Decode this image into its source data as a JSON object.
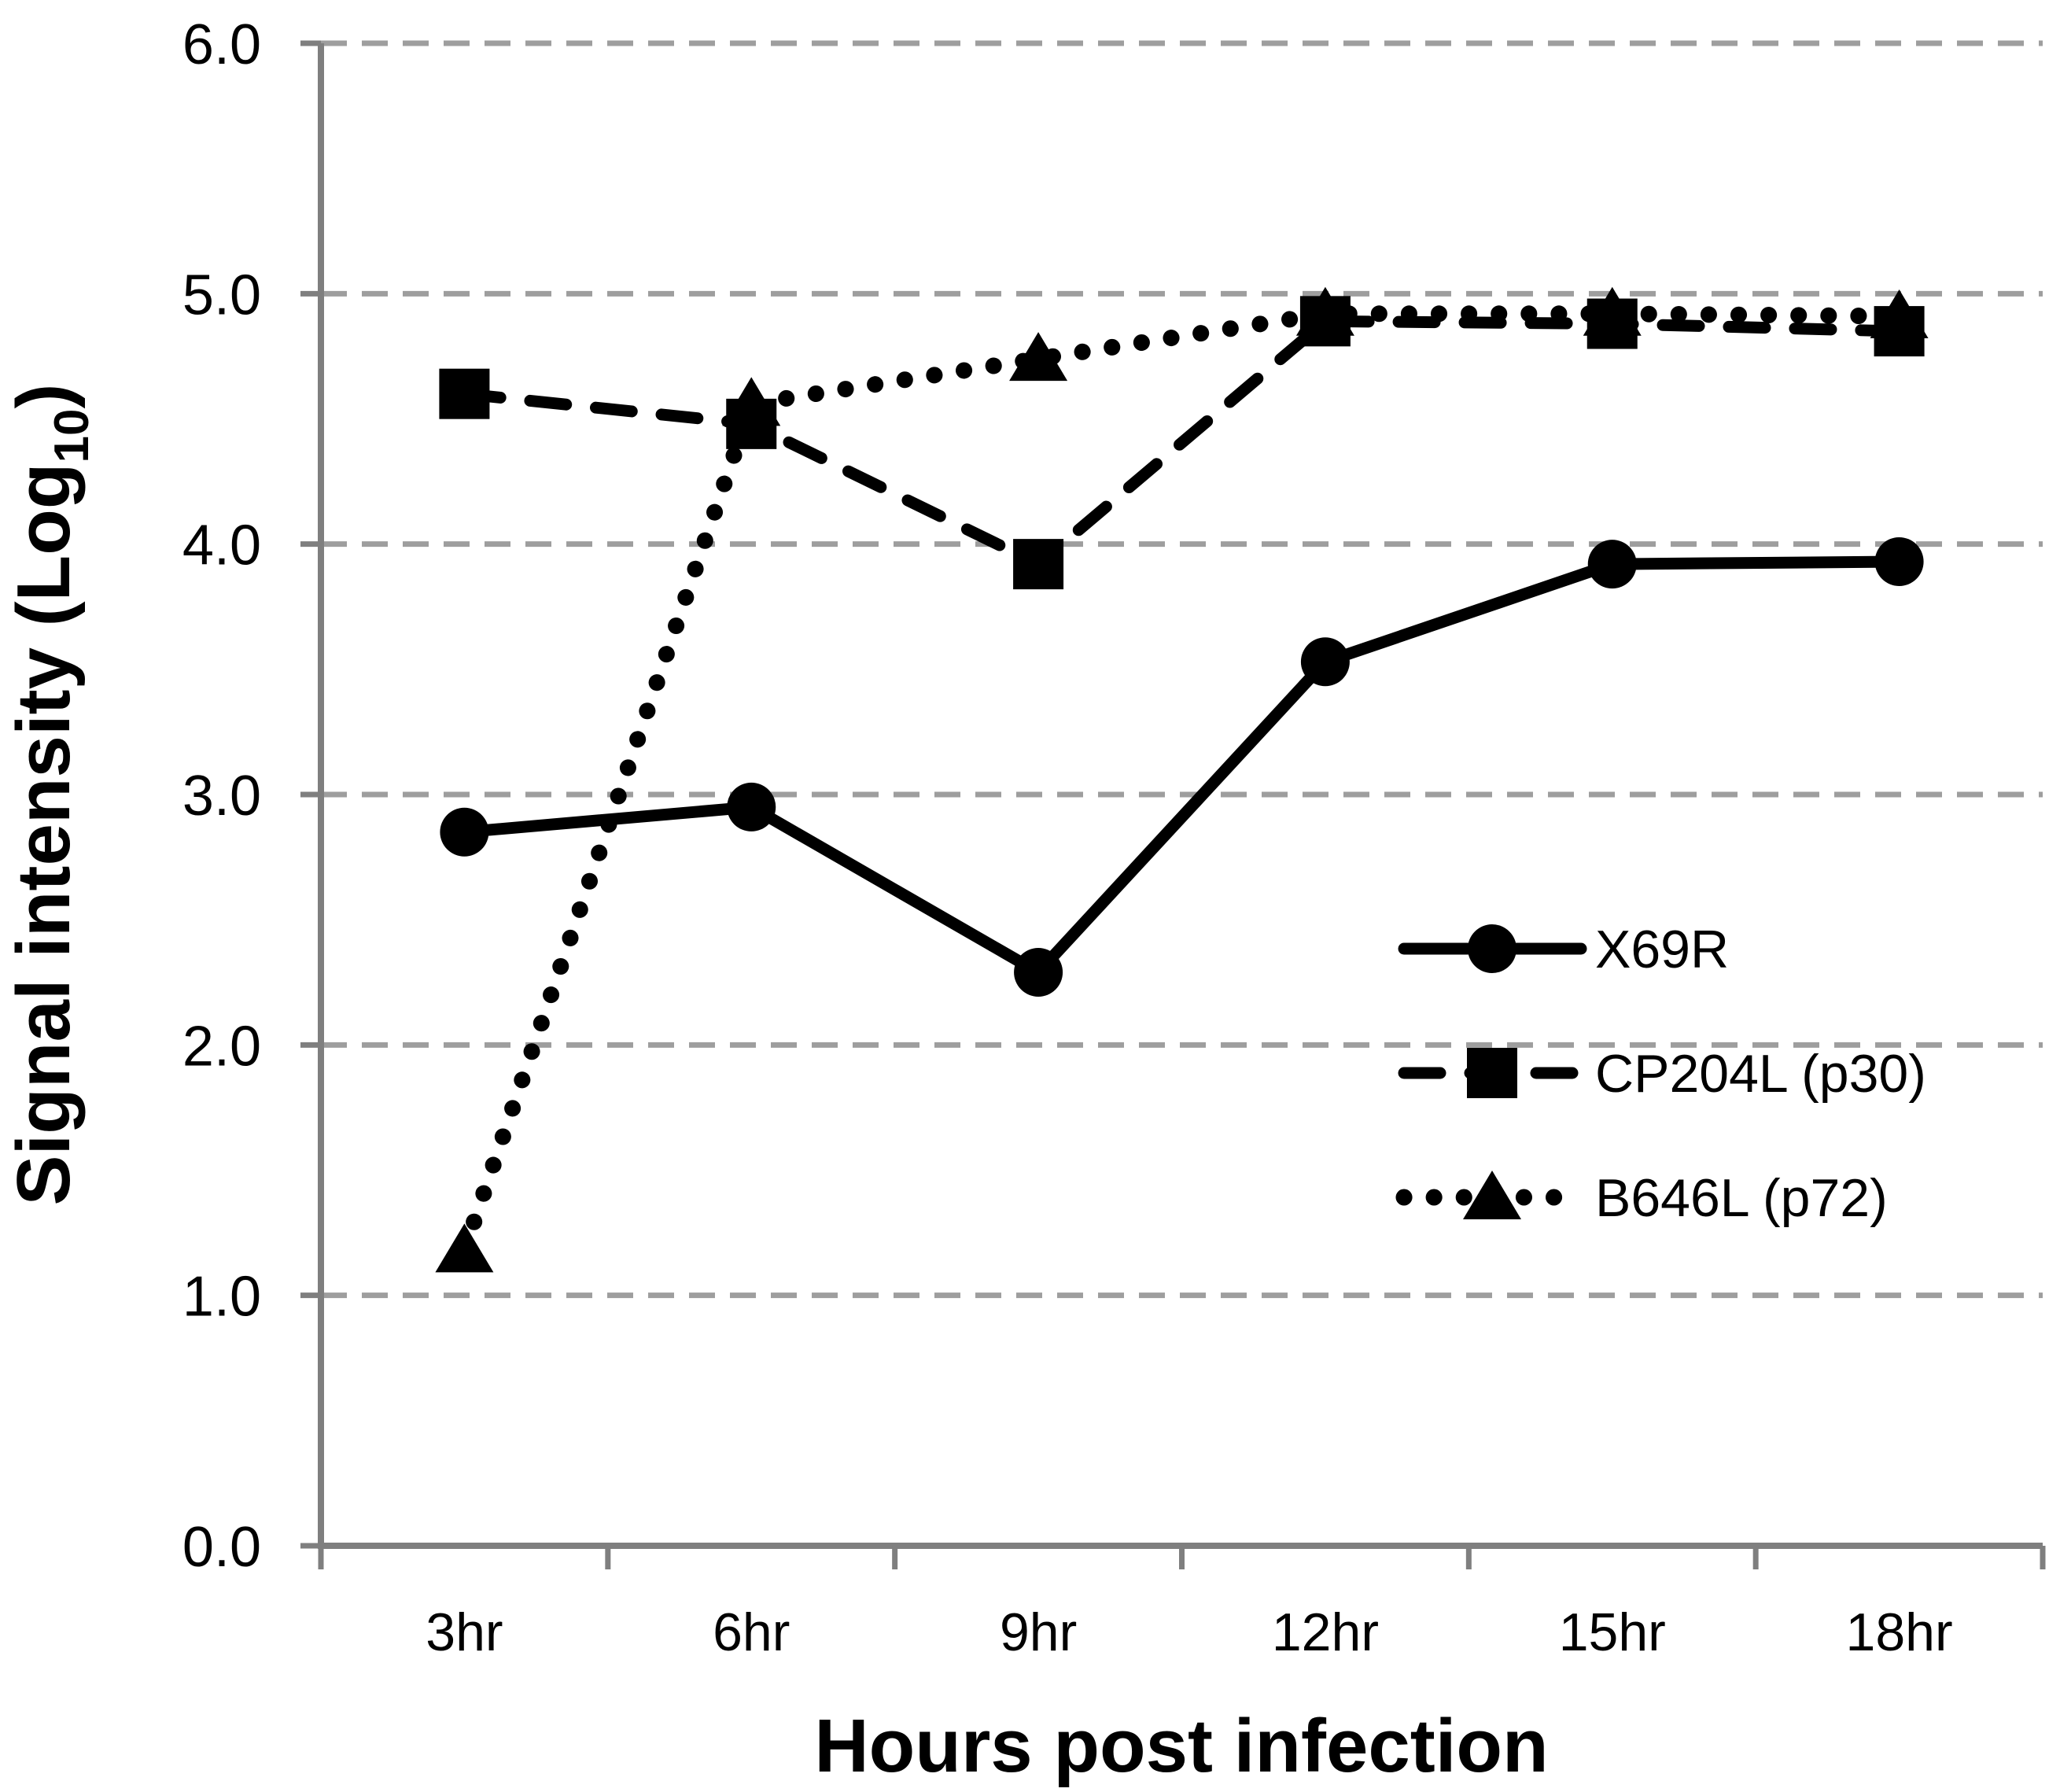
{
  "chart_data": {
    "type": "line",
    "title": "",
    "categories": [
      "3hr",
      "6hr",
      "9hr",
      "12hr",
      "15hr",
      "18hr"
    ],
    "series": [
      {
        "name": "X69R",
        "values": [
          2.85,
          2.95,
          2.29,
          3.53,
          3.92,
          3.93
        ],
        "line_style": "solid",
        "marker": "circle",
        "color": "#000000"
      },
      {
        "name": "CP204L (p30)",
        "values": [
          4.6,
          4.48,
          3.92,
          4.89,
          4.88,
          4.85
        ],
        "line_style": "dashed",
        "marker": "square",
        "color": "#000000"
      },
      {
        "name": "B646L (p72)",
        "values": [
          1.18,
          4.56,
          4.74,
          4.92,
          4.92,
          4.91
        ],
        "line_style": "dotted",
        "marker": "triangle",
        "color": "#000000"
      }
    ],
    "xlabel": "Hours post infection",
    "ylabel": "Signal intensity (Log10)",
    "ylabel_parts": {
      "main": "Signal intensity (Log",
      "sub": "10",
      "end": ")"
    },
    "ylim": [
      0,
      6
    ],
    "ytick_step": 1.0,
    "ytick_labels": [
      "0.0",
      "1.0",
      "2.0",
      "3.0",
      "4.0",
      "5.0",
      "6.0"
    ],
    "grid": "horizontal dashed",
    "legend_position": "inside right",
    "colors": {
      "series": "#000000",
      "axis": "#7f7f7f",
      "gridline": "#9e9e9e",
      "background": "#ffffff",
      "text": "#000000"
    }
  }
}
